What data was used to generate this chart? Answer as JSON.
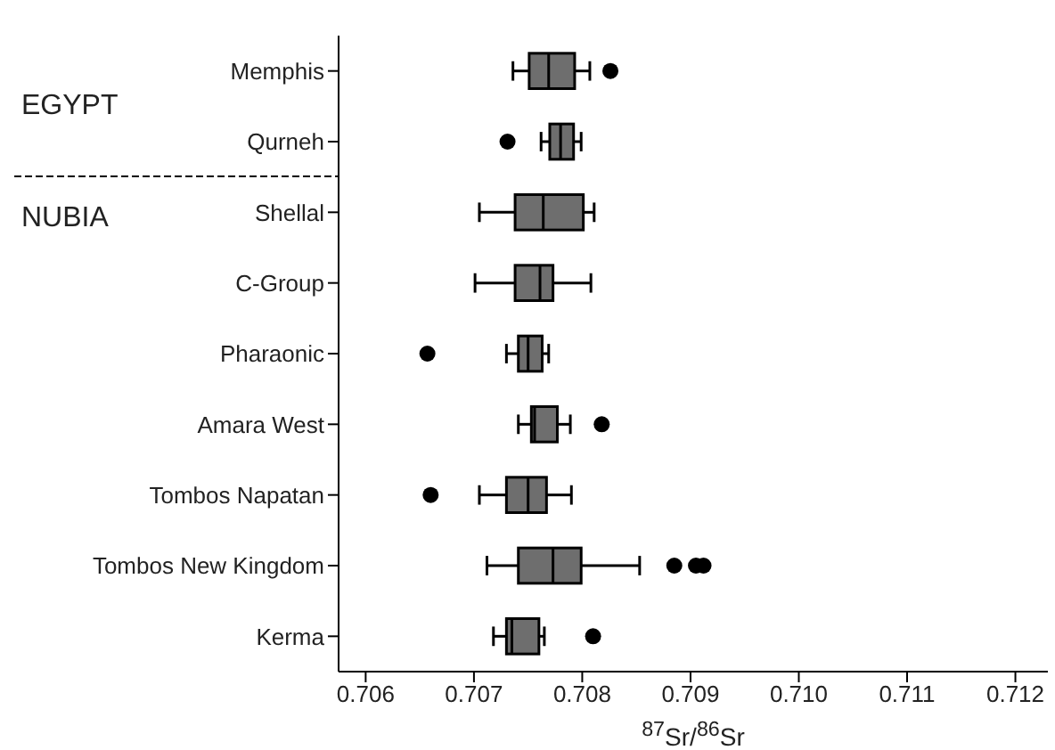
{
  "chart_data": {
    "type": "box",
    "orientation": "horizontal",
    "xlabel": "$^{87}$Sr/$^{86}$Sr",
    "color": "#6e6e6e",
    "categories": [
      "Memphis",
      "Qurneh",
      "Shellal",
      "C-Group",
      "Pharaonic",
      "Amara West",
      "Tombos Napatan",
      "Tombos New Kingdom",
      "Kerma"
    ],
    "boxes": [
      {
        "low": 0.70736,
        "q1": 0.70751,
        "median": 0.70769,
        "q3": 0.70793,
        "high": 0.70807,
        "outliers": [
          0.70826
        ]
      },
      {
        "low": 0.70762,
        "q1": 0.7077,
        "median": 0.7078,
        "q3": 0.70792,
        "high": 0.70799,
        "outliers": [
          0.70731
        ]
      },
      {
        "low": 0.70705,
        "q1": 0.70738,
        "median": 0.70764,
        "q3": 0.70801,
        "high": 0.70811
      },
      {
        "low": 0.70701,
        "q1": 0.70738,
        "median": 0.70761,
        "q3": 0.70773,
        "high": 0.70808
      },
      {
        "low": 0.7073,
        "q1": 0.70741,
        "median": 0.7075,
        "q3": 0.70763,
        "high": 0.70769,
        "outliers": [
          0.70657
        ]
      },
      {
        "low": 0.70741,
        "q1": 0.70753,
        "median": 0.70756,
        "q3": 0.70777,
        "high": 0.70789,
        "outliers": [
          0.70818
        ]
      },
      {
        "low": 0.70705,
        "q1": 0.7073,
        "median": 0.7075,
        "q3": 0.70767,
        "high": 0.7079,
        "outliers": [
          0.7066
        ]
      },
      {
        "low": 0.70712,
        "q1": 0.70741,
        "median": 0.70773,
        "q3": 0.70799,
        "high": 0.70853,
        "outliers": [
          0.70885,
          0.70905,
          0.70912
        ]
      },
      {
        "low": 0.70718,
        "q1": 0.7073,
        "median": 0.70735,
        "q3": 0.7076,
        "high": 0.70765,
        "outliers": [
          0.7081
        ]
      }
    ],
    "xlim": [
      0.70575,
      0.7123
    ],
    "xticks": [
      0.706,
      0.707,
      0.708,
      0.709,
      {
        "value": 0.71,
        "label": "0.710"
      },
      0.711,
      0.712
    ],
    "annotations": [
      "EGYPT",
      "NUBIA"
    ]
  }
}
